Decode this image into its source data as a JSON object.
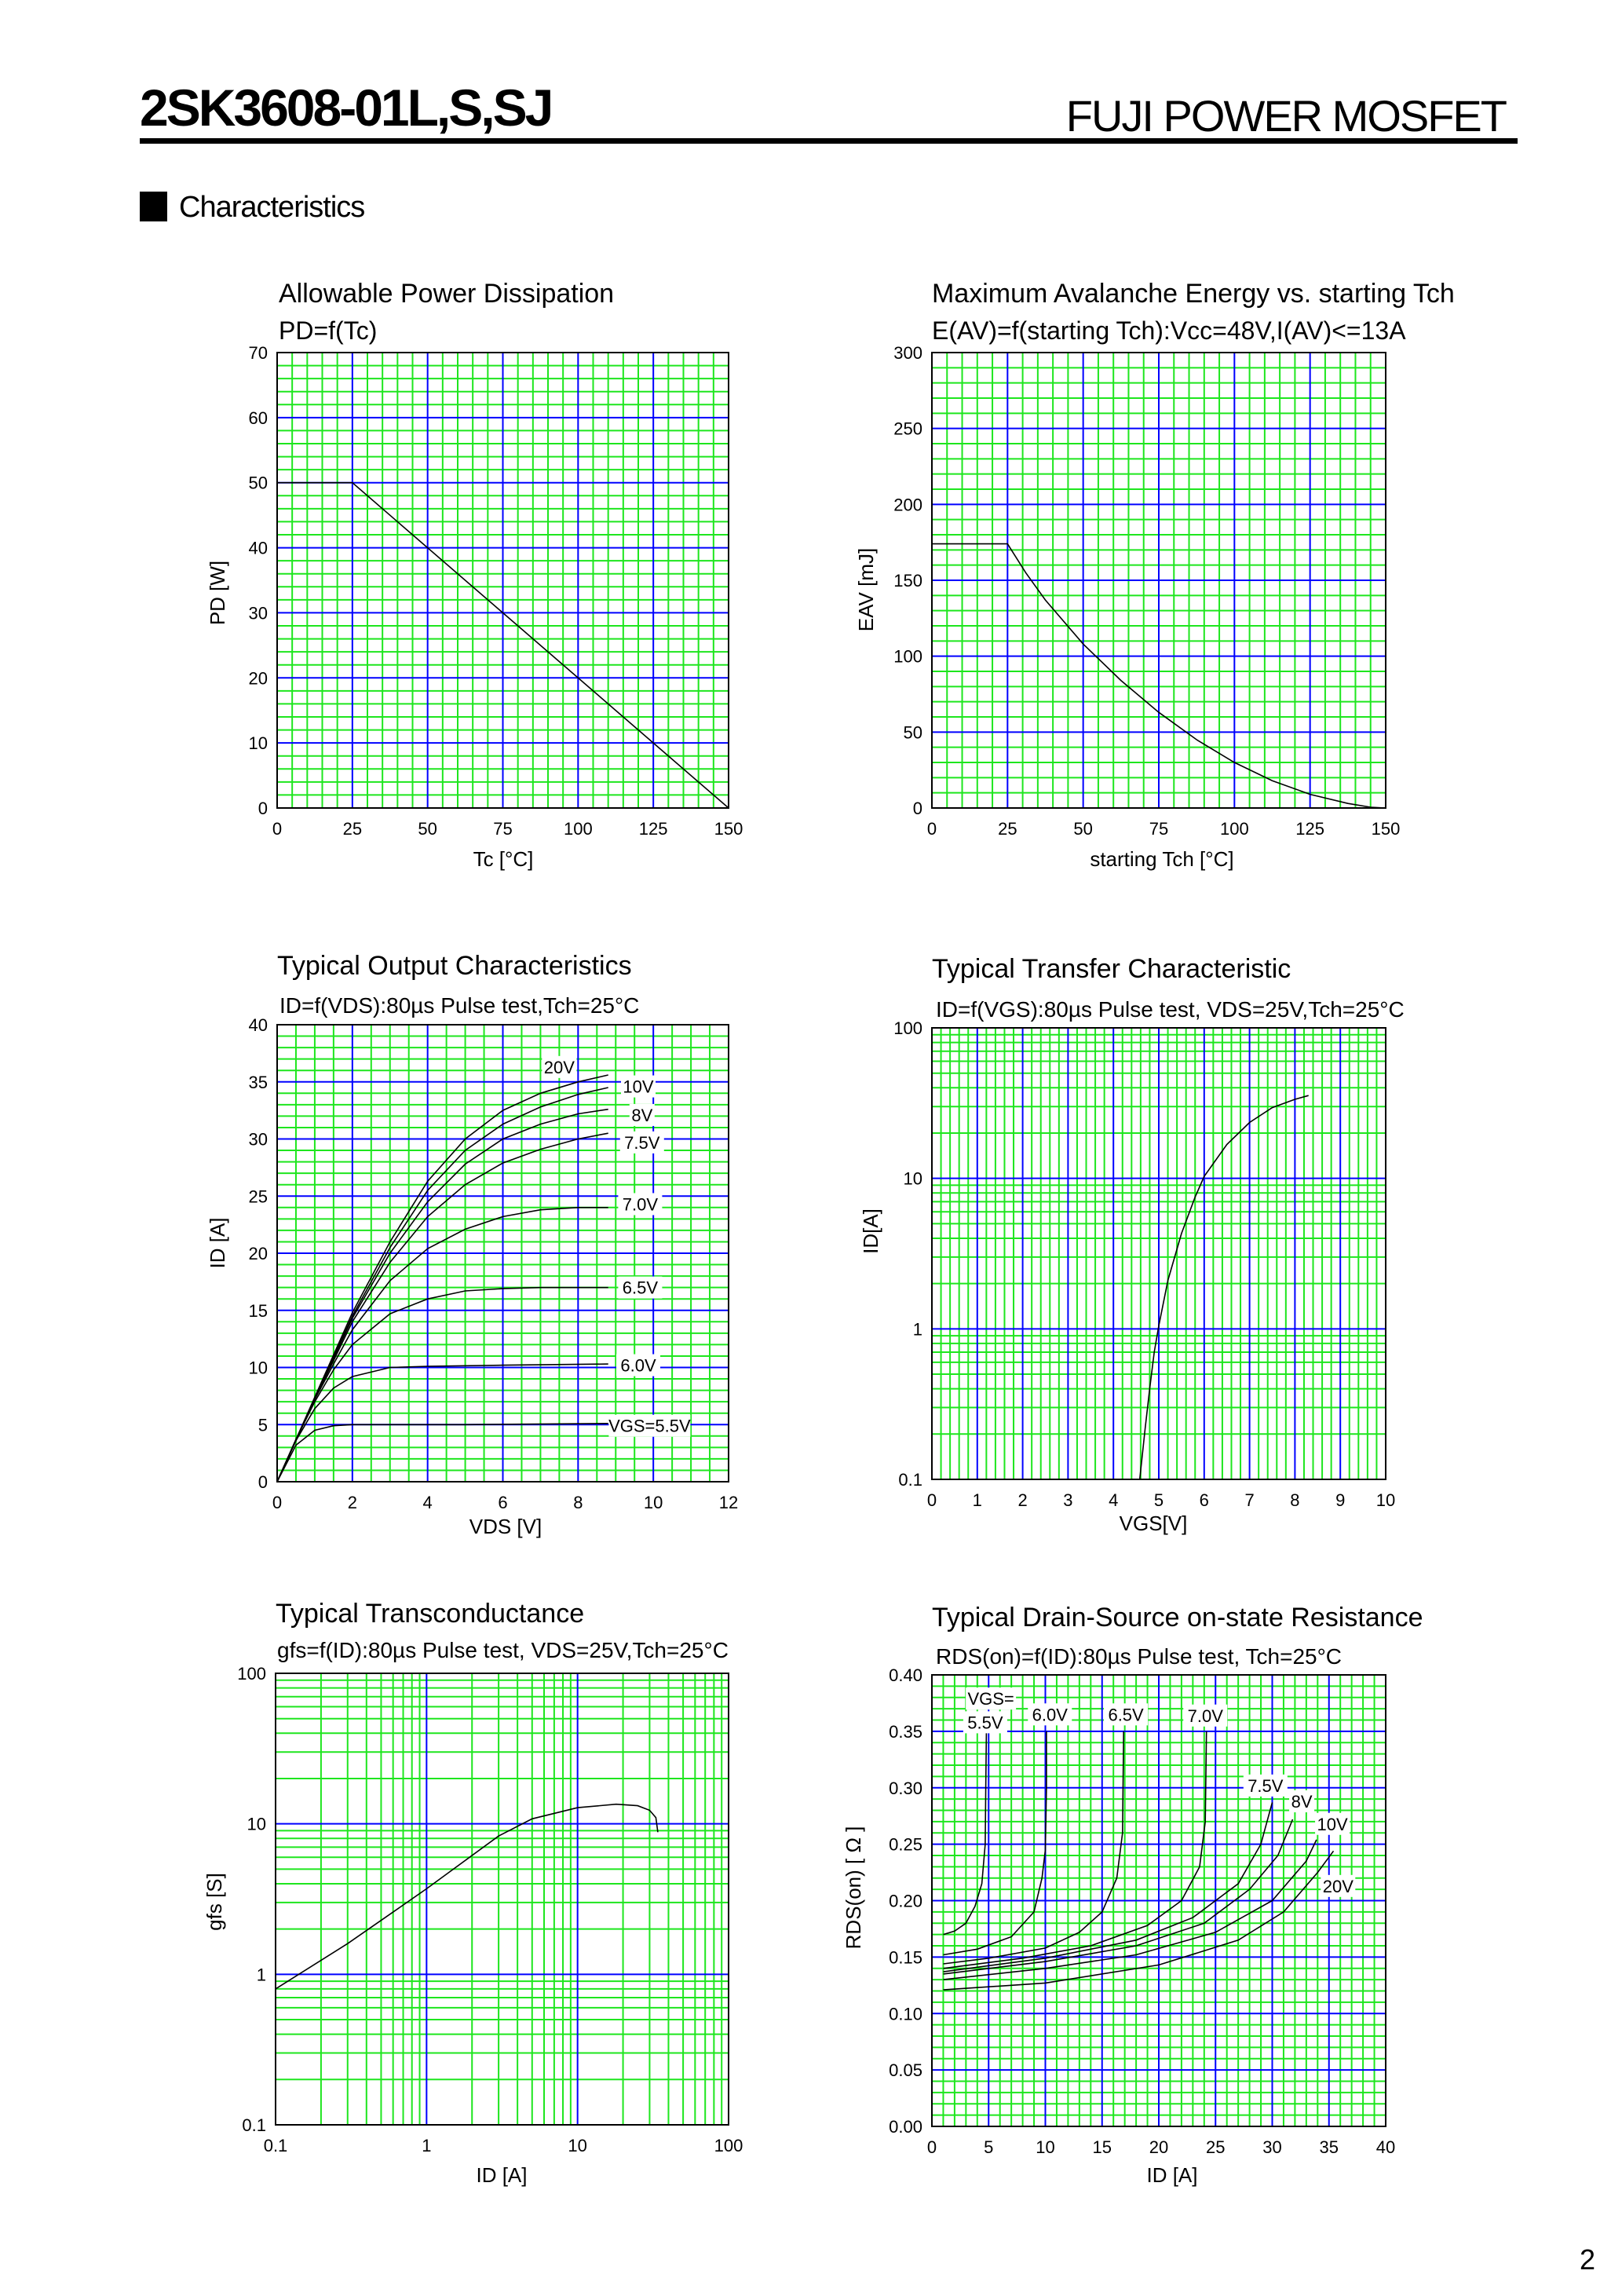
{
  "header": {
    "part_number": "2SK3608-01L,S,SJ",
    "brand": "FUJI POWER MOSFET"
  },
  "section": "Characteristics",
  "page_number": "2",
  "colors": {
    "minor_grid": "#1ee61e",
    "major_grid": "#0000ff",
    "curve": "#000000"
  },
  "chart_data": [
    {
      "type": "line",
      "title": "Allowable Power Dissipation",
      "subtitle": "PD=f(Tc)",
      "xlabel": "Tc [°C]",
      "ylabel": "PD [W]",
      "xscale": "linear",
      "yscale": "linear",
      "xlim": [
        0,
        150
      ],
      "ylim": [
        0,
        70
      ],
      "xticks": [
        "0",
        "25",
        "50",
        "75",
        "100",
        "125",
        "150"
      ],
      "yticks": [
        "0",
        "10",
        "20",
        "30",
        "40",
        "50",
        "60",
        "70"
      ],
      "grid": {
        "x_major": 25,
        "x_minor": 5,
        "y_major": 10,
        "y_minor": 2
      },
      "series": [
        {
          "points": [
            [
              0,
              50
            ],
            [
              25,
              50
            ],
            [
              150,
              0
            ]
          ]
        }
      ]
    },
    {
      "type": "line",
      "title": "Maximum Avalanche Energy vs. starting Tch",
      "subtitle": "E(AV)=f(starting Tch):Vcc=48V,I(AV)<=13A",
      "xlabel": "starting Tch [°C]",
      "ylabel": "EAV [mJ]",
      "xscale": "linear",
      "yscale": "linear",
      "xlim": [
        0,
        150
      ],
      "ylim": [
        0,
        300
      ],
      "xticks": [
        "0",
        "25",
        "50",
        "75",
        "100",
        "125",
        "150"
      ],
      "yticks": [
        "0",
        "50",
        "100",
        "150",
        "200",
        "250",
        "300"
      ],
      "grid": {
        "x_major": 25,
        "x_minor": 5,
        "y_major": 50,
        "y_minor": 10
      },
      "series": [
        {
          "points": [
            [
              0,
              174
            ],
            [
              25,
              174
            ],
            [
              31,
              155
            ],
            [
              37.5,
              137
            ],
            [
              50,
              108
            ],
            [
              62.5,
              84
            ],
            [
              75,
              63
            ],
            [
              87.5,
              45
            ],
            [
              100,
              30
            ],
            [
              112.5,
              18
            ],
            [
              125,
              9
            ],
            [
              137.5,
              3
            ],
            [
              145,
              0.5
            ],
            [
              150,
              0
            ]
          ]
        }
      ]
    },
    {
      "type": "line",
      "title": "Typical Output Characteristics",
      "subtitle": "ID=f(VDS):80µs Pulse test,Tch=25°C",
      "xlabel": "VDS [V]",
      "ylabel": "ID [A]",
      "xscale": "linear",
      "yscale": "linear",
      "xlim": [
        0,
        12
      ],
      "ylim": [
        0,
        40
      ],
      "xticks": [
        "0",
        "2",
        "4",
        "6",
        "8",
        "10",
        "12"
      ],
      "yticks": [
        "0",
        "5",
        "10",
        "15",
        "20",
        "25",
        "30",
        "35",
        "40"
      ],
      "grid": {
        "x_major": 2,
        "x_minor": 0.5,
        "y_major": 5,
        "y_minor": 1
      },
      "series": [
        {
          "name": "20V",
          "points": [
            [
              0,
              0
            ],
            [
              0.5,
              3.7
            ],
            [
              1,
              7.4
            ],
            [
              1.5,
              11.1
            ],
            [
              2,
              14.8
            ],
            [
              3,
              21
            ],
            [
              4,
              26.3
            ],
            [
              5,
              30
            ],
            [
              6,
              32.5
            ],
            [
              7,
              34
            ],
            [
              8,
              35
            ],
            [
              8.8,
              35.6
            ]
          ]
        },
        {
          "name": "10V",
          "points": [
            [
              0,
              0
            ],
            [
              0.5,
              3.7
            ],
            [
              1,
              7.3
            ],
            [
              1.5,
              10.9
            ],
            [
              2,
              14.5
            ],
            [
              3,
              20.5
            ],
            [
              4,
              25.5
            ],
            [
              5,
              29
            ],
            [
              6,
              31.3
            ],
            [
              7,
              32.8
            ],
            [
              8,
              33.9
            ],
            [
              8.8,
              34.5
            ]
          ]
        },
        {
          "name": "8V",
          "points": [
            [
              0,
              0
            ],
            [
              0.5,
              3.6
            ],
            [
              1,
              7.3
            ],
            [
              1.5,
              10.8
            ],
            [
              2,
              14.3
            ],
            [
              3,
              20
            ],
            [
              4,
              24.5
            ],
            [
              5,
              27.8
            ],
            [
              6,
              30
            ],
            [
              7,
              31.3
            ],
            [
              8,
              32.2
            ],
            [
              8.8,
              32.6
            ]
          ]
        },
        {
          "name": "7.5V",
          "points": [
            [
              0,
              0
            ],
            [
              0.5,
              3.6
            ],
            [
              1,
              7.3
            ],
            [
              1.5,
              10.6
            ],
            [
              2,
              14
            ],
            [
              3,
              19.2
            ],
            [
              4,
              23.2
            ],
            [
              5,
              26
            ],
            [
              6,
              27.9
            ],
            [
              7,
              29.1
            ],
            [
              8,
              30
            ],
            [
              8.8,
              30.5
            ]
          ]
        },
        {
          "name": "7.0V",
          "points": [
            [
              0,
              0
            ],
            [
              0.5,
              3.7
            ],
            [
              1,
              7.2
            ],
            [
              1.5,
              10.3
            ],
            [
              2,
              13.3
            ],
            [
              3,
              17.6
            ],
            [
              4,
              20.4
            ],
            [
              5,
              22.1
            ],
            [
              6,
              23.2
            ],
            [
              7,
              23.8
            ],
            [
              8,
              24
            ],
            [
              8.8,
              24
            ]
          ]
        },
        {
          "name": "6.5V",
          "points": [
            [
              0,
              0
            ],
            [
              0.5,
              3.7
            ],
            [
              1,
              7
            ],
            [
              1.5,
              9.8
            ],
            [
              2,
              12
            ],
            [
              3,
              14.7
            ],
            [
              4,
              16
            ],
            [
              5,
              16.7
            ],
            [
              6,
              16.9
            ],
            [
              7,
              17
            ],
            [
              8,
              17
            ],
            [
              8.8,
              17
            ]
          ]
        },
        {
          "name": "6.0V",
          "points": [
            [
              0,
              0
            ],
            [
              0.5,
              3.6
            ],
            [
              1,
              6.4
            ],
            [
              1.5,
              8.2
            ],
            [
              2,
              9.2
            ],
            [
              3,
              10
            ],
            [
              4,
              10.1
            ],
            [
              6,
              10.2
            ],
            [
              8.8,
              10.3
            ]
          ]
        },
        {
          "name": "VGS=5.5V",
          "points": [
            [
              0,
              0
            ],
            [
              0.5,
              3.2
            ],
            [
              1,
              4.5
            ],
            [
              1.5,
              4.9
            ],
            [
              2,
              5
            ],
            [
              5,
              5
            ],
            [
              8.8,
              5.1
            ]
          ]
        }
      ]
    },
    {
      "type": "line",
      "title": "Typical Transfer Characteristic",
      "subtitle": "ID=f(VGS):80µs Pulse test, VDS=25V,Tch=25°C",
      "xlabel": "VGS[V]",
      "ylabel": "ID[A]",
      "xscale": "linear",
      "yscale": "log",
      "xlim": [
        0,
        10
      ],
      "ylim": [
        0.1,
        100
      ],
      "xticks": [
        "0",
        "1",
        "2",
        "3",
        "4",
        "5",
        "6",
        "7",
        "8",
        "9",
        "10"
      ],
      "yticks": [
        "0.1",
        "1",
        "10",
        "100"
      ],
      "grid": {
        "x_major": 1,
        "x_minor": 0.2
      },
      "series": [
        {
          "points": [
            [
              4.58,
              0.1
            ],
            [
              4.7,
              0.22
            ],
            [
              4.8,
              0.4
            ],
            [
              4.9,
              0.7
            ],
            [
              5,
              1.05
            ],
            [
              5.2,
              2.1
            ],
            [
              5.5,
              4.3
            ],
            [
              5.8,
              7.5
            ],
            [
              6,
              10.3
            ],
            [
              6.5,
              16.8
            ],
            [
              7,
              23.5
            ],
            [
              7.5,
              29.5
            ],
            [
              8,
              33.5
            ],
            [
              8.3,
              35.5
            ]
          ]
        }
      ]
    },
    {
      "type": "line",
      "title": "Typical Transconductance",
      "subtitle": "gfs=f(ID):80µs Pulse test, VDS=25V,Tch=25°C",
      "xlabel": "ID [A]",
      "ylabel": "gfs [S]",
      "xscale": "log",
      "yscale": "log",
      "xlim": [
        0.1,
        100
      ],
      "ylim": [
        0.1,
        100
      ],
      "xticks": [
        "0.1",
        "1",
        "10",
        "100"
      ],
      "yticks": [
        "0.1",
        "1",
        "10",
        "100"
      ],
      "grid": {},
      "series": [
        {
          "points": [
            [
              0.1,
              0.8
            ],
            [
              0.3,
              1.6
            ],
            [
              1,
              3.7
            ],
            [
              3,
              8.3
            ],
            [
              5,
              10.8
            ],
            [
              10,
              12.8
            ],
            [
              18,
              13.5
            ],
            [
              25,
              13.2
            ],
            [
              30,
              12.3
            ],
            [
              33,
              11
            ],
            [
              34,
              8.8
            ]
          ]
        }
      ]
    },
    {
      "type": "line",
      "title": "Typical Drain-Source on-state Resistance",
      "subtitle": "RDS(on)=f(ID):80µs Pulse test, Tch=25°C",
      "xlabel": "ID [A]",
      "ylabel": "RDS(on) [ Ω ]",
      "xscale": "linear",
      "yscale": "linear",
      "xlim": [
        0,
        40
      ],
      "ylim": [
        0,
        0.4
      ],
      "xticks": [
        "0",
        "5",
        "10",
        "15",
        "20",
        "25",
        "30",
        "35",
        "40"
      ],
      "yticks": [
        "0.00",
        "0.05",
        "0.10",
        "0.15",
        "0.20",
        "0.25",
        "0.30",
        "0.35",
        "0.40"
      ],
      "grid": {
        "x_major": 5,
        "x_minor": 1,
        "y_major": 0.05,
        "y_minor": 0.01
      },
      "annotation": "VGS=",
      "series": [
        {
          "name": "5.5V",
          "points": [
            [
              1,
              0.17
            ],
            [
              2,
              0.173
            ],
            [
              3,
              0.18
            ],
            [
              3.8,
              0.195
            ],
            [
              4.4,
              0.215
            ],
            [
              4.7,
              0.25
            ],
            [
              4.75,
              0.3
            ],
            [
              4.8,
              0.35
            ]
          ]
        },
        {
          "name": "6.0V",
          "points": [
            [
              1,
              0.152
            ],
            [
              4,
              0.157
            ],
            [
              7,
              0.168
            ],
            [
              9,
              0.19
            ],
            [
              9.7,
              0.22
            ],
            [
              10,
              0.245
            ],
            [
              10.1,
              0.3
            ],
            [
              10.1,
              0.35
            ]
          ]
        },
        {
          "name": "6.5V",
          "points": [
            [
              1,
              0.144
            ],
            [
              5,
              0.149
            ],
            [
              10,
              0.158
            ],
            [
              13,
              0.172
            ],
            [
              15,
              0.19
            ],
            [
              16.3,
              0.22
            ],
            [
              16.8,
              0.26
            ],
            [
              16.9,
              0.35
            ]
          ]
        },
        {
          "name": "7.0V",
          "points": [
            [
              1,
              0.14
            ],
            [
              8,
              0.149
            ],
            [
              14,
              0.16
            ],
            [
              19,
              0.178
            ],
            [
              22,
              0.2
            ],
            [
              23.6,
              0.23
            ],
            [
              24.1,
              0.27
            ],
            [
              24.2,
              0.35
            ]
          ]
        },
        {
          "name": "7.5V",
          "points": [
            [
              1,
              0.137
            ],
            [
              10,
              0.149
            ],
            [
              18,
              0.165
            ],
            [
              23,
              0.185
            ],
            [
              27,
              0.215
            ],
            [
              29,
              0.25
            ],
            [
              30,
              0.287
            ]
          ]
        },
        {
          "name": "8V",
          "points": [
            [
              1,
              0.135
            ],
            [
              10,
              0.146
            ],
            [
              18,
              0.16
            ],
            [
              24,
              0.18
            ],
            [
              28,
              0.21
            ],
            [
              30.5,
              0.24
            ],
            [
              31.8,
              0.272
            ]
          ]
        },
        {
          "name": "10V",
          "points": [
            [
              1,
              0.13
            ],
            [
              10,
              0.14
            ],
            [
              18,
              0.152
            ],
            [
              25,
              0.172
            ],
            [
              30,
              0.2
            ],
            [
              33,
              0.235
            ],
            [
              33.9,
              0.254
            ]
          ]
        },
        {
          "name": "20V",
          "points": [
            [
              1,
              0.121
            ],
            [
              10,
              0.127
            ],
            [
              20,
              0.143
            ],
            [
              27,
              0.165
            ],
            [
              31,
              0.19
            ],
            [
              34,
              0.225
            ],
            [
              35.4,
              0.244
            ]
          ]
        }
      ]
    }
  ]
}
